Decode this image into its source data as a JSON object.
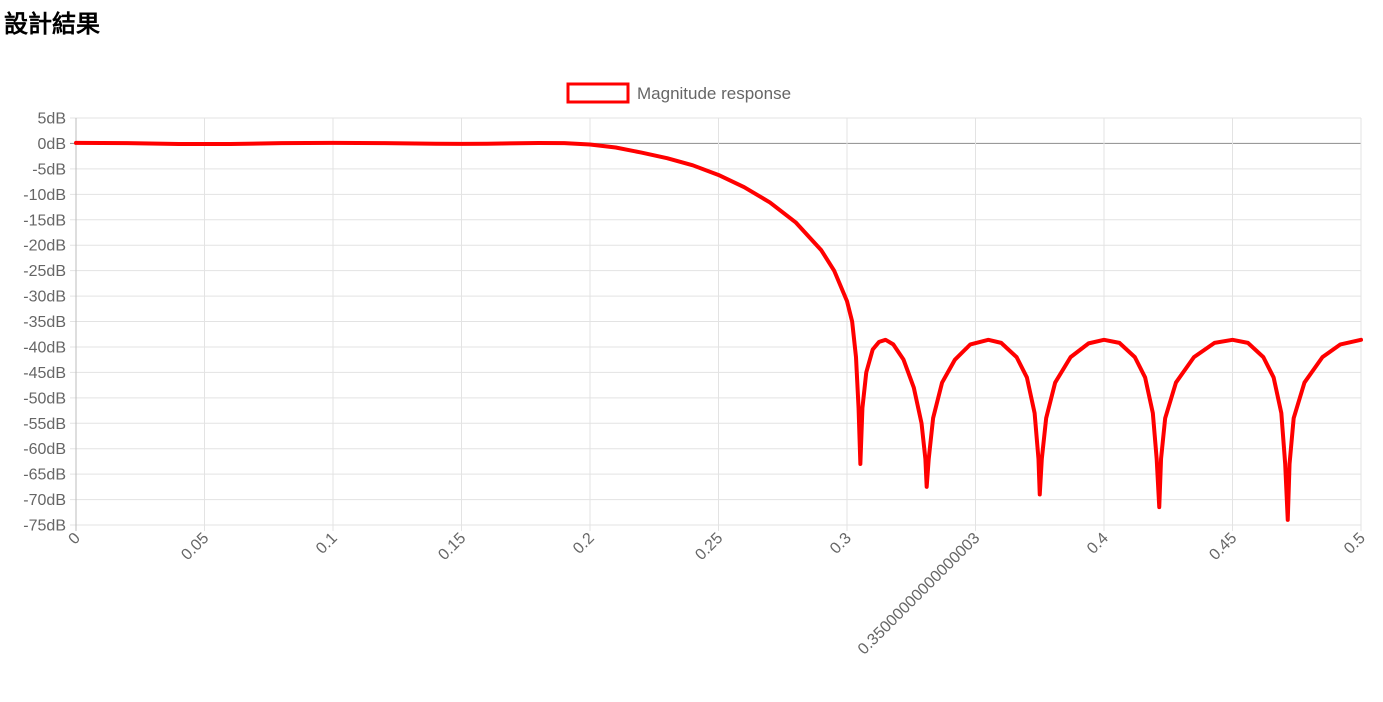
{
  "page": {
    "title": "設計結果"
  },
  "chart_data": {
    "type": "line",
    "title": "",
    "xlabel": "",
    "ylabel": "",
    "legend": {
      "position": "top",
      "entries": [
        "Magnitude response"
      ]
    },
    "grid": true,
    "xlim": [
      0,
      0.5
    ],
    "ylim": [
      -75,
      5
    ],
    "x_ticks": [
      {
        "value": 0,
        "label": "0"
      },
      {
        "value": 0.05,
        "label": "0.05"
      },
      {
        "value": 0.1,
        "label": "0.1"
      },
      {
        "value": 0.15,
        "label": "0.15"
      },
      {
        "value": 0.2,
        "label": "0.2"
      },
      {
        "value": 0.25,
        "label": "0.25"
      },
      {
        "value": 0.3,
        "label": "0.3"
      },
      {
        "value": 0.35,
        "label": "0.35000000000000003"
      },
      {
        "value": 0.4,
        "label": "0.4"
      },
      {
        "value": 0.45,
        "label": "0.45"
      },
      {
        "value": 0.5,
        "label": "0.5"
      }
    ],
    "y_ticks": [
      {
        "value": 5,
        "label": "5dB"
      },
      {
        "value": 0,
        "label": "0dB"
      },
      {
        "value": -5,
        "label": "-5dB"
      },
      {
        "value": -10,
        "label": "-10dB"
      },
      {
        "value": -15,
        "label": "-15dB"
      },
      {
        "value": -20,
        "label": "-20dB"
      },
      {
        "value": -25,
        "label": "-25dB"
      },
      {
        "value": -30,
        "label": "-30dB"
      },
      {
        "value": -35,
        "label": "-35dB"
      },
      {
        "value": -40,
        "label": "-40dB"
      },
      {
        "value": -45,
        "label": "-45dB"
      },
      {
        "value": -50,
        "label": "-50dB"
      },
      {
        "value": -55,
        "label": "-55dB"
      },
      {
        "value": -60,
        "label": "-60dB"
      },
      {
        "value": -65,
        "label": "-65dB"
      },
      {
        "value": -70,
        "label": "-70dB"
      },
      {
        "value": -75,
        "label": "-75dB"
      }
    ],
    "series": [
      {
        "name": "Magnitude response",
        "color": "#ff0000",
        "points": [
          [
            0,
            0.1
          ],
          [
            0.02,
            0.05
          ],
          [
            0.04,
            -0.1
          ],
          [
            0.05,
            -0.12
          ],
          [
            0.06,
            -0.1
          ],
          [
            0.08,
            0.05
          ],
          [
            0.1,
            0.12
          ],
          [
            0.12,
            0.05
          ],
          [
            0.14,
            -0.05
          ],
          [
            0.15,
            -0.08
          ],
          [
            0.16,
            -0.05
          ],
          [
            0.18,
            0.08
          ],
          [
            0.19,
            0.05
          ],
          [
            0.2,
            -0.2
          ],
          [
            0.21,
            -0.8
          ],
          [
            0.22,
            -1.8
          ],
          [
            0.23,
            -2.9
          ],
          [
            0.24,
            -4.3
          ],
          [
            0.25,
            -6.2
          ],
          [
            0.26,
            -8.6
          ],
          [
            0.27,
            -11.6
          ],
          [
            0.28,
            -15.5
          ],
          [
            0.29,
            -21
          ],
          [
            0.295,
            -25
          ],
          [
            0.3,
            -31
          ],
          [
            0.302,
            -35
          ],
          [
            0.3035,
            -42
          ],
          [
            0.3045,
            -52
          ],
          [
            0.3052,
            -63
          ],
          [
            0.306,
            -52
          ],
          [
            0.3075,
            -45
          ],
          [
            0.31,
            -40.5
          ],
          [
            0.3125,
            -39
          ],
          [
            0.315,
            -38.6
          ],
          [
            0.318,
            -39.5
          ],
          [
            0.322,
            -42.5
          ],
          [
            0.326,
            -48
          ],
          [
            0.329,
            -55
          ],
          [
            0.3305,
            -62
          ],
          [
            0.331,
            -67.5
          ],
          [
            0.3318,
            -62
          ],
          [
            0.3335,
            -54
          ],
          [
            0.337,
            -47
          ],
          [
            0.342,
            -42.5
          ],
          [
            0.348,
            -39.5
          ],
          [
            0.355,
            -38.6
          ],
          [
            0.36,
            -39.2
          ],
          [
            0.366,
            -42
          ],
          [
            0.37,
            -46
          ],
          [
            0.373,
            -53
          ],
          [
            0.3745,
            -62
          ],
          [
            0.375,
            -69
          ],
          [
            0.3758,
            -62
          ],
          [
            0.3775,
            -54
          ],
          [
            0.381,
            -47
          ],
          [
            0.387,
            -42
          ],
          [
            0.394,
            -39.3
          ],
          [
            0.4,
            -38.6
          ],
          [
            0.406,
            -39.2
          ],
          [
            0.412,
            -42
          ],
          [
            0.416,
            -46
          ],
          [
            0.419,
            -53
          ],
          [
            0.4205,
            -62
          ],
          [
            0.4215,
            -71.5
          ],
          [
            0.4222,
            -62
          ],
          [
            0.4238,
            -54
          ],
          [
            0.428,
            -47
          ],
          [
            0.435,
            -42
          ],
          [
            0.443,
            -39.2
          ],
          [
            0.45,
            -38.6
          ],
          [
            0.456,
            -39.2
          ],
          [
            0.462,
            -42
          ],
          [
            0.466,
            -46
          ],
          [
            0.469,
            -53
          ],
          [
            0.4705,
            -63
          ],
          [
            0.4715,
            -74
          ],
          [
            0.4722,
            -63
          ],
          [
            0.4738,
            -54
          ],
          [
            0.478,
            -47
          ],
          [
            0.485,
            -42
          ],
          [
            0.492,
            -39.5
          ],
          [
            0.5,
            -38.6
          ]
        ]
      }
    ]
  }
}
